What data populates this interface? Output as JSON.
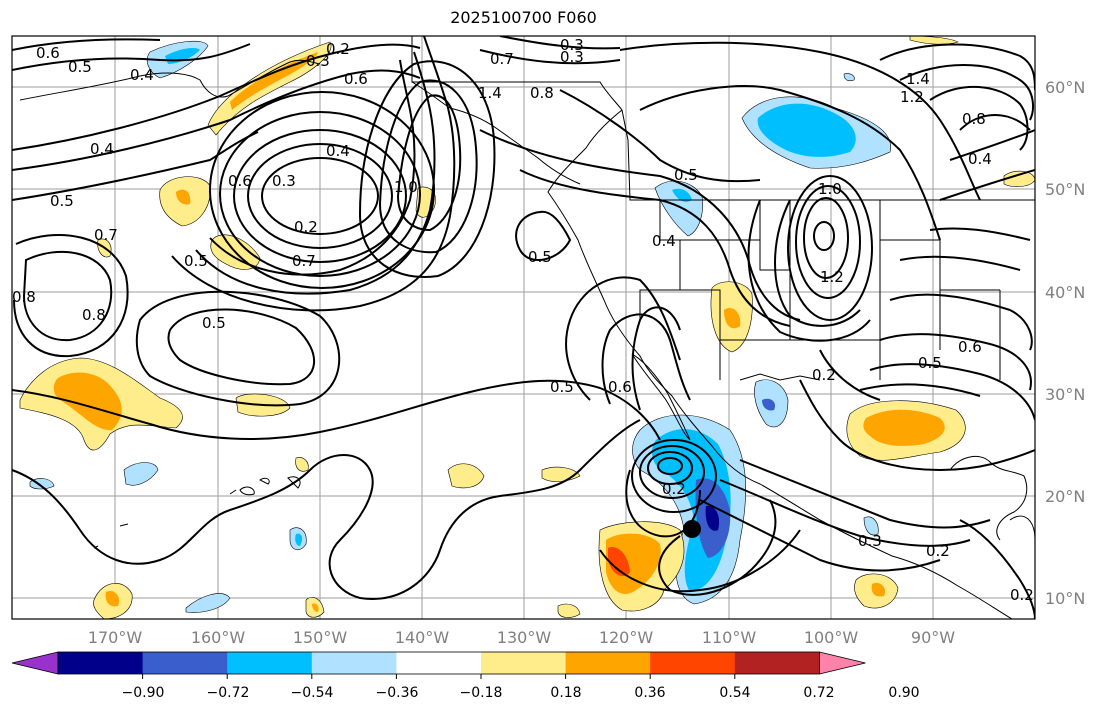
{
  "title": "2025100700 F060",
  "lon_labels": [
    "170°W",
    "160°W",
    "150°W",
    "140°W",
    "130°W",
    "120°W",
    "110°W",
    "100°W",
    "90°W"
  ],
  "lat_labels": [
    "60°N",
    "50°N",
    "40°N",
    "30°N",
    "20°N",
    "10°N"
  ],
  "colorbar": {
    "colors": [
      "#9932cc",
      "#00008b",
      "#3a5fcd",
      "#00bfff",
      "#b0e2ff",
      "#ffffff",
      "#ffec8b",
      "#ffa500",
      "#ff4500",
      "#b22222",
      "#ff82ab"
    ],
    "ticks": [
      "−0.90",
      "−0.72",
      "−0.54",
      "−0.36",
      "−0.18",
      "0.18",
      "0.36",
      "0.54",
      "0.72",
      "0.90"
    ]
  },
  "contour_labels": [
    "0.6",
    "0.5",
    "0.4",
    "0.2",
    "0.3",
    "0.6",
    "0.7",
    "0.3",
    "0.3",
    "1.4",
    "0.8",
    "0.4",
    "0.5",
    "0.6",
    "0.3",
    "0.4",
    "0.2",
    "0.5",
    "0.7",
    "1.0",
    "0.5",
    "0.4",
    "1.0",
    "1.2",
    "1.4",
    "1.2",
    "0.8",
    "0.4",
    "0.5",
    "0.6",
    "0.5",
    "0.2",
    "0.8",
    "0.5",
    "0.6",
    "0.5",
    "0.2",
    "0.3",
    "0.2",
    "0.2",
    "0.7",
    "0.8"
  ],
  "marker": "storm-center"
}
